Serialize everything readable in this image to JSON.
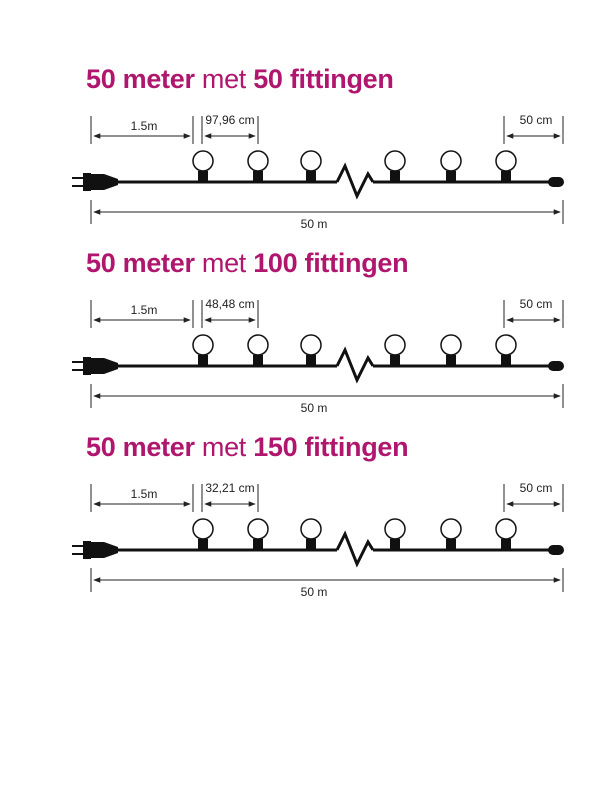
{
  "colors": {
    "title": "#b0166e",
    "cable": "#111111",
    "dimension": "#222222",
    "bulb_stroke": "#111111",
    "bulb_fill": "#ffffff"
  },
  "icons": [
    "plug-icon",
    "bulb-icon",
    "break-zigzag-icon",
    "cable-end-cap-icon",
    "dimension-arrow-icon"
  ],
  "sections": [
    {
      "title": {
        "part1": "50 meter",
        "part2": "met",
        "part3": "50 fittingen"
      },
      "lead_length": "1.5m",
      "spacing": "97,96 cm",
      "end_length": "50 cm",
      "total_length": "50 m"
    },
    {
      "title": {
        "part1": "50 meter",
        "part2": "met",
        "part3": "100 fittingen"
      },
      "lead_length": "1.5m",
      "spacing": "48,48 cm",
      "end_length": "50 cm",
      "total_length": "50 m"
    },
    {
      "title": {
        "part1": "50 meter",
        "part2": "met",
        "part3": "150 fittingen"
      },
      "lead_length": "1.5m",
      "spacing": "32,21 cm",
      "end_length": "50 cm",
      "total_length": "50 m"
    }
  ]
}
